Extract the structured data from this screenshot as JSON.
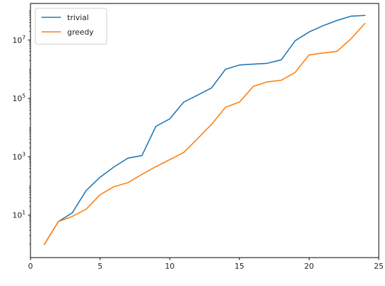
{
  "chart_data": {
    "type": "line",
    "title": "",
    "xlabel": "",
    "ylabel": "",
    "xlim": [
      0,
      25
    ],
    "ylim": [
      0.35,
      180000000
    ],
    "yscale": "log",
    "grid": false,
    "legend_position": "top-left",
    "x_ticks": [
      {
        "value": 0,
        "label": "0"
      },
      {
        "value": 5,
        "label": "5"
      },
      {
        "value": 10,
        "label": "10"
      },
      {
        "value": 15,
        "label": "15"
      },
      {
        "value": 20,
        "label": "20"
      },
      {
        "value": 25,
        "label": "25"
      }
    ],
    "y_ticks": [
      {
        "value": 10,
        "base": "10",
        "exp": "1"
      },
      {
        "value": 1000,
        "base": "10",
        "exp": "3"
      },
      {
        "value": 100000,
        "base": "10",
        "exp": "5"
      },
      {
        "value": 10000000,
        "base": "10",
        "exp": "7"
      }
    ],
    "x": [
      1,
      2,
      3,
      4,
      5,
      6,
      7,
      8,
      9,
      10,
      11,
      12,
      13,
      14,
      15,
      16,
      17,
      18,
      19,
      20,
      21,
      22,
      23,
      24
    ],
    "series": [
      {
        "name": "trivial",
        "color": "#1f77b4",
        "values": [
          1,
          6,
          12,
          70,
          200,
          450,
          900,
          1100,
          11000,
          20000,
          75000,
          130000,
          230000,
          1000000,
          1400000,
          1500000,
          1600000,
          2100000,
          9500000,
          19000000,
          31000000,
          47000000,
          66000000,
          70000000
        ]
      },
      {
        "name": "greedy",
        "color": "#ff7f0e",
        "values": [
          1,
          6,
          9,
          16,
          50,
          95,
          130,
          250,
          460,
          800,
          1400,
          4200,
          13000,
          50000,
          75000,
          260000,
          370000,
          420000,
          780000,
          3100000,
          3600000,
          4100000,
          11000000,
          37000000
        ]
      }
    ]
  }
}
